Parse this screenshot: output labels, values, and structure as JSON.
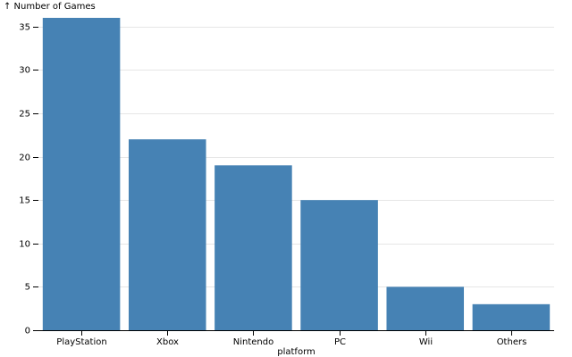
{
  "chart_data": {
    "type": "bar",
    "title": "",
    "xlabel": "platform",
    "ylabel": "↑ Number of Games",
    "categories": [
      "PlayStation",
      "Xbox",
      "Nintendo",
      "PC",
      "Wii",
      "Others"
    ],
    "values": [
      36,
      22,
      19,
      15,
      5,
      3
    ],
    "ylim": [
      0,
      36
    ],
    "yticks": [
      0,
      5,
      10,
      15,
      20,
      25,
      30,
      35
    ],
    "grid": true,
    "bar_color": "#4682b4",
    "grid_color": "#e6e6e6",
    "axis_color": "#000000"
  }
}
